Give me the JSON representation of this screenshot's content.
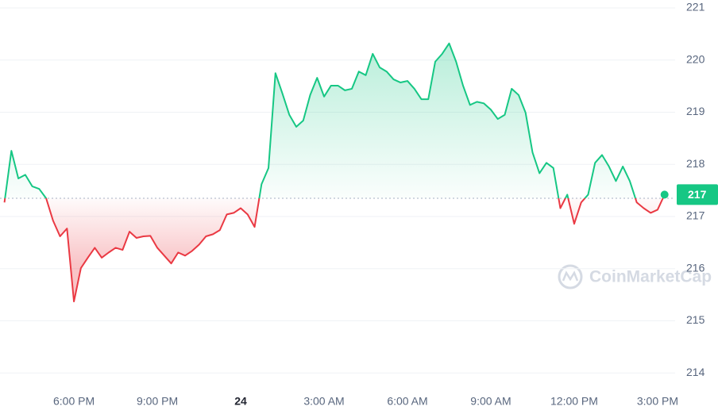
{
  "chart_data": {
    "type": "line",
    "watermark": "CoinMarketCap",
    "x": [
      15.5,
      15.75,
      16,
      16.25,
      16.5,
      16.75,
      17,
      17.25,
      17.5,
      17.75,
      18,
      18.25,
      18.5,
      18.75,
      19,
      19.25,
      19.5,
      19.75,
      20,
      20.25,
      20.5,
      20.75,
      21,
      21.25,
      21.5,
      21.75,
      22,
      22.25,
      22.5,
      22.75,
      23,
      23.25,
      23.5,
      23.75,
      24,
      24.25,
      24.5,
      24.75,
      25,
      25.25,
      25.5,
      25.75,
      26,
      26.25,
      26.5,
      26.75,
      27,
      27.25,
      27.5,
      27.75,
      28,
      28.25,
      28.5,
      28.75,
      29,
      29.25,
      29.5,
      29.75,
      30,
      30.25,
      30.5,
      30.75,
      31,
      31.25,
      31.5,
      31.75,
      32,
      32.25,
      32.5,
      32.75,
      33,
      33.25,
      33.5,
      33.75,
      34,
      34.25,
      34.5,
      34.75,
      35,
      35.25,
      35.5,
      35.75,
      36,
      36.25,
      36.5,
      36.75,
      37,
      37.25,
      37.5,
      37.75,
      38,
      38.25,
      38.5,
      38.75,
      39,
      39.25
    ],
    "values": [
      217.27,
      218.26,
      217.73,
      217.8,
      217.58,
      217.53,
      217.35,
      216.92,
      216.62,
      216.77,
      215.37,
      216.01,
      216.21,
      216.4,
      216.21,
      216.31,
      216.4,
      216.36,
      216.71,
      216.59,
      216.62,
      216.63,
      216.4,
      216.25,
      216.1,
      216.31,
      216.25,
      216.34,
      216.46,
      216.62,
      216.66,
      216.74,
      217.04,
      217.07,
      217.16,
      217.04,
      216.8,
      217.62,
      217.93,
      219.75,
      219.36,
      218.95,
      218.72,
      218.84,
      219.33,
      219.66,
      219.3,
      219.51,
      219.51,
      219.42,
      219.45,
      219.78,
      219.71,
      220.12,
      219.86,
      219.78,
      219.63,
      219.57,
      219.6,
      219.45,
      219.25,
      219.25,
      219.97,
      220.12,
      220.32,
      219.97,
      219.51,
      219.14,
      219.2,
      219.17,
      219.05,
      218.87,
      218.95,
      219.45,
      219.33,
      218.99,
      218.23,
      217.83,
      218.03,
      217.93,
      217.16,
      217.42,
      216.86,
      217.27,
      217.42,
      218.03,
      218.18,
      217.96,
      217.68,
      217.96,
      217.68,
      217.27,
      217.16,
      217.07,
      217.13,
      217.42
    ],
    "reference_price": 217.35,
    "current_price": {
      "value": 217.42,
      "label": "217"
    },
    "up_color": "#16c784",
    "down_color": "#ea3943",
    "xlim": [
      15.34,
      39.63
    ],
    "ylim": [
      213.7,
      221.0
    ],
    "xticks": [
      {
        "value": 18,
        "label": "6:00 PM"
      },
      {
        "value": 21,
        "label": "9:00 PM"
      },
      24,
      {
        "value": 27,
        "label": "3:00 AM"
      },
      {
        "value": 30,
        "label": "6:00 AM"
      },
      {
        "value": 33,
        "label": "9:00 AM"
      },
      {
        "value": 36,
        "label": "12:00 PM"
      },
      {
        "value": 39,
        "label": "3:00 PM"
      }
    ],
    "yticks": [
      214,
      215,
      216,
      217,
      218,
      219,
      220,
      221
    ],
    "grid": true
  }
}
